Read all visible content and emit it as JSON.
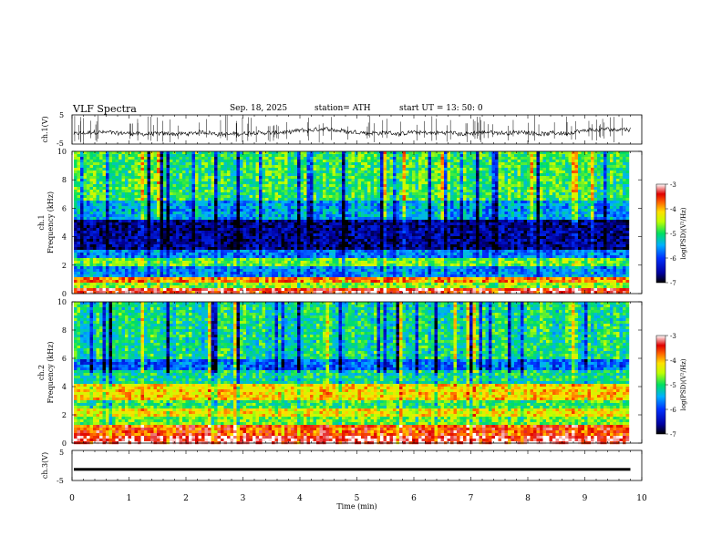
{
  "header": {
    "title": "VLF  Spectra",
    "date": "Sep. 18, 2025",
    "station": "station= ATH",
    "start": "start  UT  =   13: 50: 0"
  },
  "chart_data": [
    {
      "type": "line",
      "panel": "ch1",
      "ylabel": "ch.1(V)",
      "ylim": [
        -5,
        5
      ],
      "y_ticks": [
        "5",
        "-5"
      ],
      "xlim": [
        0,
        9.8
      ],
      "series": [
        {
          "values_description_level": "noisy waveform around -1.5 V with spikes up to ~5 V"
        }
      ],
      "color": "#000000"
    },
    {
      "type": "heatmap",
      "panel": "ch1",
      "ylabel_lines": [
        "ch.1",
        "Frequency  (kHz)"
      ],
      "ylim": [
        0,
        10
      ],
      "y_ticks": [
        "0",
        "2",
        "4",
        "6",
        "8",
        "10"
      ],
      "colorbar_label": "log(PSD)(V²/Hz)",
      "colorbar_range": [
        -7,
        -3
      ],
      "colorbar_ticks": [
        "-3",
        "-4",
        "-5",
        "-6",
        "-7"
      ],
      "bands": [
        {
          "from": 0,
          "to": 0.3,
          "level": -3.3
        },
        {
          "from": 0.3,
          "to": 0.7,
          "level": -4.6
        },
        {
          "from": 0.7,
          "to": 1.1,
          "level": -3.8
        },
        {
          "from": 1.1,
          "to": 2.0,
          "level": -5.6
        },
        {
          "from": 2.0,
          "to": 2.5,
          "level": -4.7
        },
        {
          "from": 2.5,
          "to": 3.0,
          "level": -5.7
        },
        {
          "from": 3.0,
          "to": 5.2,
          "level": -6.6
        },
        {
          "from": 5.2,
          "to": 6.5,
          "level": -5.5
        },
        {
          "from": 6.5,
          "to": 10,
          "level": -4.9
        }
      ]
    },
    {
      "type": "heatmap",
      "panel": "ch2",
      "ylabel_lines": [
        "ch.2",
        "Frequency  (kHz)"
      ],
      "ylim": [
        0,
        10
      ],
      "y_ticks": [
        "0",
        "2",
        "4",
        "6",
        "8",
        "10"
      ],
      "colorbar_label": "log(PSD)(V²/Hz)",
      "colorbar_range": [
        -7,
        -3
      ],
      "colorbar_ticks": [
        "-3",
        "-4",
        "-5",
        "-6",
        "-7"
      ],
      "bands": [
        {
          "from": 0,
          "to": 0.6,
          "level": -3.2
        },
        {
          "from": 0.6,
          "to": 1.2,
          "level": -3.6
        },
        {
          "from": 1.2,
          "to": 1.9,
          "level": -4.7
        },
        {
          "from": 1.9,
          "to": 2.4,
          "level": -4.2
        },
        {
          "from": 2.4,
          "to": 3.0,
          "level": -4.9
        },
        {
          "from": 3.0,
          "to": 4.2,
          "level": -4.1
        },
        {
          "from": 4.2,
          "to": 5.2,
          "level": -5.1
        },
        {
          "from": 5.2,
          "to": 6.0,
          "level": -5.8
        },
        {
          "from": 6.0,
          "to": 10,
          "level": -5.1
        }
      ]
    },
    {
      "type": "line",
      "panel": "ch3",
      "ylabel": "ch.3(V)",
      "ylim": [
        -5,
        5
      ],
      "y_ticks": [
        "5",
        "-5"
      ],
      "xlim": [
        0,
        9.8
      ],
      "series": [
        {
          "constant_level": -1.3
        }
      ],
      "color": "#000000"
    }
  ],
  "x_axis": {
    "label": "Time  (min)",
    "range": [
      0,
      10
    ],
    "ticks": [
      "0",
      "1",
      "2",
      "3",
      "4",
      "5",
      "6",
      "7",
      "8",
      "9",
      "10"
    ]
  }
}
